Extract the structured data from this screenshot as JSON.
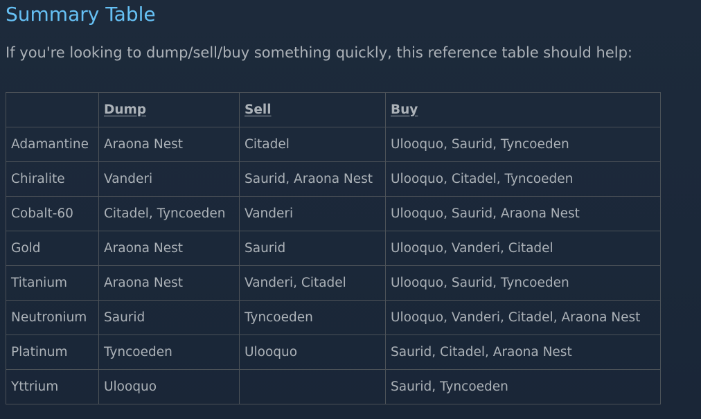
{
  "title": "Summary Table",
  "intro": "If you're looking to dump/sell/buy something quickly, this reference table should help:",
  "colors": {
    "title": "#66c0f4",
    "text": "#acb2b8",
    "background": "#1b2838",
    "border": "#4c5258"
  },
  "table": {
    "headers": [
      "",
      "Dump",
      "Sell",
      "Buy"
    ],
    "rows": [
      [
        "Adamantine",
        "Araona Nest",
        "Citadel",
        "Ulooquo, Saurid, Tyncoeden"
      ],
      [
        "Chiralite",
        "Vanderi",
        "Saurid, Araona Nest",
        "Ulooquo, Citadel, Tyncoeden"
      ],
      [
        "Cobalt-60",
        "Citadel, Tyncoeden",
        "Vanderi",
        "Ulooquo, Saurid, Araona Nest"
      ],
      [
        "Gold",
        "Araona Nest",
        "Saurid",
        "Ulooquo, Vanderi, Citadel"
      ],
      [
        "Titanium",
        "Araona Nest",
        "Vanderi, Citadel",
        "Ulooquo, Saurid, Tyncoeden"
      ],
      [
        "Neutronium",
        "Saurid",
        "Tyncoeden",
        "Ulooquo, Vanderi, Citadel, Araona Nest"
      ],
      [
        "Platinum",
        "Tyncoeden",
        "Ulooquo",
        "Saurid, Citadel, Araona Nest"
      ],
      [
        "Yttrium",
        "Ulooquo",
        "",
        "Saurid, Tyncoeden"
      ]
    ]
  }
}
